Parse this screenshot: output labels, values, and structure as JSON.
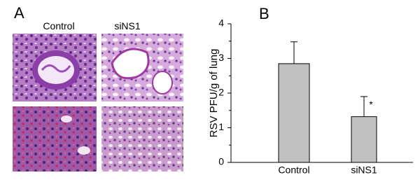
{
  "panel_a": {
    "label": "A",
    "columns": [
      "Control",
      "siNS1"
    ]
  },
  "chart_data": {
    "type": "bar",
    "panel_label": "B",
    "y_label": "RSV PFU/g of lung",
    "categories": [
      "Control",
      "siNS1"
    ],
    "values": [
      2.85,
      1.32
    ],
    "errors": [
      0.63,
      0.58
    ],
    "color": "#c0c0c0",
    "ylim": [
      0,
      4
    ],
    "yticks": [
      0,
      1,
      2,
      3,
      4
    ],
    "annotation": "*"
  }
}
